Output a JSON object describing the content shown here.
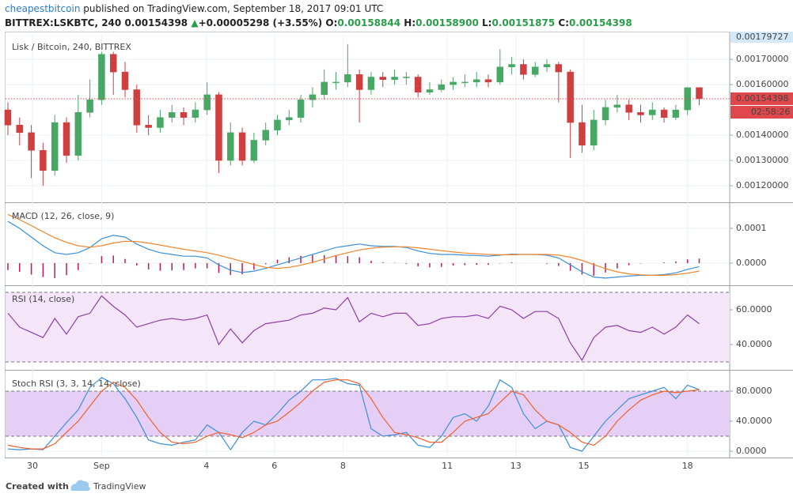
{
  "header": {
    "author": "cheapestbitcoin",
    "published": "published on TradingView.com, September 18, 2017 09:01 UTC",
    "symbol": "BITTREX:LSKBTC, 240",
    "price": "0.00154398",
    "arrow": "▲",
    "change": "+0.00005298 (+3.55%)",
    "ohlc": [
      {
        "label": "O:",
        "value": "0.00158844"
      },
      {
        "label": "H:",
        "value": "0.00158900"
      },
      {
        "label": "L:",
        "value": "0.00151875"
      },
      {
        "label": "C:",
        "value": "0.00154398"
      }
    ]
  },
  "footer": {
    "created": "Created with",
    "brand": "TradingView"
  },
  "chart_data": [
    {
      "type": "candlestick",
      "title": "Lisk / Bitcoin, 240, BITTREX",
      "up_color": "#47a865",
      "down_color": "#cf3f3f",
      "open": [
        0.0015,
        0.00144,
        0.00141,
        0.00134,
        0.00126,
        0.00145,
        0.00132,
        0.00149,
        0.00154,
        0.00172,
        0.00165,
        0.00158,
        0.00144,
        0.00143,
        0.00147,
        0.00149,
        0.00147,
        0.0015,
        0.00156,
        0.0013,
        0.00141,
        0.0013,
        0.00138,
        0.00142,
        0.00146,
        0.00147,
        0.00154,
        0.00156,
        0.00161,
        0.00161,
        0.00164,
        0.00158,
        0.00163,
        0.00162,
        0.00163,
        0.00163,
        0.00157,
        0.00158,
        0.0016,
        0.00161,
        0.00161,
        0.00162,
        0.00161,
        0.00167,
        0.00168,
        0.00164,
        0.00167,
        0.00168,
        0.00165,
        0.00145,
        0.00136,
        0.00146,
        0.00151,
        0.00152,
        0.00149,
        0.00148,
        0.0015,
        0.00147,
        0.0015,
        0.00158844
      ],
      "high": [
        0.00153,
        0.00147,
        0.00144,
        0.00137,
        0.00148,
        0.00147,
        0.00156,
        0.00162,
        0.00173,
        0.00173,
        0.00169,
        0.0016,
        0.00148,
        0.0015,
        0.00152,
        0.00151,
        0.00153,
        0.00161,
        0.00157,
        0.00145,
        0.00143,
        0.00141,
        0.00145,
        0.00148,
        0.0015,
        0.00156,
        0.00159,
        0.00166,
        0.00165,
        0.00176,
        0.00166,
        0.00165,
        0.00165,
        0.00166,
        0.00165,
        0.00164,
        0.00161,
        0.00162,
        0.00163,
        0.00164,
        0.00165,
        0.00164,
        0.00174,
        0.00171,
        0.0017,
        0.00169,
        0.0017,
        0.00169,
        0.00166,
        0.00152,
        0.0015,
        0.00154,
        0.00156,
        0.00154,
        0.00152,
        0.00153,
        0.00151,
        0.00152,
        0.00159,
        0.001589
      ],
      "low": [
        0.0014,
        0.00136,
        0.00123,
        0.0012,
        0.00124,
        0.00129,
        0.0013,
        0.00147,
        0.00152,
        0.00156,
        0.00155,
        0.00141,
        0.0014,
        0.00141,
        0.00145,
        0.00144,
        0.00145,
        0.00148,
        0.00125,
        0.00128,
        0.00128,
        0.00129,
        0.00136,
        0.0014,
        0.00144,
        0.00145,
        0.00151,
        0.00154,
        0.00158,
        0.00159,
        0.00145,
        0.00156,
        0.00159,
        0.0016,
        0.0016,
        0.00155,
        0.00156,
        0.00157,
        0.00158,
        0.00159,
        0.00159,
        0.00159,
        0.0016,
        0.00164,
        0.00162,
        0.00163,
        0.00165,
        0.00153,
        0.00131,
        0.00133,
        0.00134,
        0.00144,
        0.00149,
        0.00146,
        0.00145,
        0.00146,
        0.00145,
        0.00146,
        0.00148,
        0.00151875
      ],
      "close": [
        0.00144,
        0.00141,
        0.00134,
        0.00126,
        0.00145,
        0.00132,
        0.00149,
        0.00154,
        0.00172,
        0.00165,
        0.00158,
        0.00144,
        0.00143,
        0.00147,
        0.00149,
        0.00147,
        0.0015,
        0.00156,
        0.0013,
        0.00141,
        0.0013,
        0.00138,
        0.00142,
        0.00146,
        0.00147,
        0.00154,
        0.00156,
        0.00161,
        0.00161,
        0.00164,
        0.00158,
        0.00163,
        0.00162,
        0.00163,
        0.00163,
        0.00157,
        0.00158,
        0.0016,
        0.00161,
        0.00161,
        0.00162,
        0.00161,
        0.00167,
        0.00168,
        0.00164,
        0.00167,
        0.00168,
        0.00165,
        0.00145,
        0.00136,
        0.00146,
        0.00151,
        0.00152,
        0.00149,
        0.00148,
        0.0015,
        0.00147,
        0.0015,
        0.001588,
        0.00154398
      ],
      "ylim": [
        0.0011375,
        0.00179727
      ],
      "yticks": [
        {
          "value": 0.0012,
          "label": "0.00120000"
        },
        {
          "value": 0.0013,
          "label": "0.00130000"
        },
        {
          "value": 0.0014,
          "label": "0.00140000"
        },
        {
          "value": 0.0016,
          "label": "0.00160000"
        },
        {
          "value": 0.0017,
          "label": "0.00170000"
        }
      ],
      "scale_high": {
        "value": 0.00179727,
        "label": "0.00179727",
        "color": "#d3e8f8"
      },
      "last_price": {
        "value": 0.00154398,
        "label": "0.00154398",
        "countdown": "02:58:26",
        "color": "#e0474c"
      }
    },
    {
      "type": "line",
      "title": "MACD (12, 26, close, 9)",
      "series": [
        {
          "color": "#c2185b",
          "style": "histogram",
          "values": [
            -2e-05,
            -2.5e-05,
            -3.3e-05,
            -4e-05,
            -4.3e-05,
            -3.5e-05,
            -2e-05,
            -1e-06,
            2e-05,
            2.2e-05,
            1.2e-05,
            -7e-06,
            -1.8e-05,
            -2.2e-05,
            -2.1e-05,
            -2e-05,
            -1.5e-05,
            -1.5e-05,
            -2.8e-05,
            -3.4e-05,
            -3.2e-05,
            -1.9e-05,
            -3e-06,
            1e-05,
            1.7e-05,
            2.1e-05,
            2.3e-05,
            2.3e-05,
            2.3e-05,
            2e-05,
            1.7e-05,
            7e-06,
            2e-06,
            1e-06,
            -2e-06,
            -9e-06,
            -1.2e-05,
            -1.1e-05,
            -7e-06,
            -6e-06,
            -5e-06,
            -5e-06,
            -1e-06,
            2e-06,
            0,
            0,
            -2e-06,
            -8e-06,
            -2.2e-05,
            -3.3e-05,
            -3.6e-05,
            -2.7e-05,
            -1.5e-05,
            -6e-06,
            -1e-06,
            0,
            2e-06,
            5e-06,
            1.1e-05,
            1.3e-05
          ]
        },
        {
          "color": "#3c8fd8",
          "values": [
            0.00012,
            0.0001,
            7.5e-05,
            5e-05,
            3e-05,
            2.5e-05,
            3e-05,
            4.5e-05,
            7e-05,
            8e-05,
            7.5e-05,
            5.5e-05,
            4e-05,
            3e-05,
            2.5e-05,
            2e-05,
            2e-05,
            1.5e-05,
            -5e-06,
            -2e-05,
            -2.7e-05,
            -2.3e-05,
            -1.5e-05,
            -5e-06,
            5e-06,
            1.5e-05,
            2.5e-05,
            3.5e-05,
            4.5e-05,
            5e-05,
            5.5e-05,
            5e-05,
            4.8e-05,
            4.8e-05,
            4.5e-05,
            3.5e-05,
            2.8e-05,
            2.5e-05,
            2.5e-05,
            2.3e-05,
            2.2e-05,
            2e-05,
            2.3e-05,
            2.6e-05,
            2.5e-05,
            2.5e-05,
            2.3e-05,
            1.5e-05,
            -5e-06,
            -2.5e-05,
            -4e-05,
            -4.3e-05,
            -4e-05,
            -3.7e-05,
            -3.5e-05,
            -3.5e-05,
            -3.3e-05,
            -2.8e-05,
            -1.8e-05,
            -1e-05
          ]
        },
        {
          "color": "#f2852c",
          "values": [
            0.00014,
            0.000125,
            0.000108,
            9e-05,
            7.3e-05,
            6e-05,
            5e-05,
            4.6e-05,
            5e-05,
            5.8e-05,
            6.3e-05,
            6.2e-05,
            5.8e-05,
            5.2e-05,
            4.6e-05,
            4e-05,
            3.5e-05,
            3e-05,
            2.3e-05,
            1.4e-05,
            5e-06,
            -4e-06,
            -1.2e-05,
            -1.5e-05,
            -1.2e-05,
            -6e-06,
            2e-06,
            1.2e-05,
            2.2e-05,
            3e-05,
            3.8e-05,
            4.3e-05,
            4.6e-05,
            4.7e-05,
            4.7e-05,
            4.4e-05,
            4e-05,
            3.6e-05,
            3.2e-05,
            2.9e-05,
            2.7e-05,
            2.5e-05,
            2.4e-05,
            2.4e-05,
            2.5e-05,
            2.5e-05,
            2.5e-05,
            2.3e-05,
            1.7e-05,
            8e-06,
            -4e-06,
            -1.6e-05,
            -2.5e-05,
            -3.1e-05,
            -3.4e-05,
            -3.5e-05,
            -3.5e-05,
            -3.3e-05,
            -2.9e-05,
            -2.3e-05
          ]
        }
      ],
      "ylim": [
        -6.14e-05,
        0.0001705
      ],
      "yticks": [
        {
          "value": 0,
          "label": "0.0000"
        },
        0.0001
      ]
    },
    {
      "type": "line",
      "title": "RSI (14, close)",
      "bands": [
        30,
        70
      ],
      "band_color": "#f4e6f8",
      "series": [
        {
          "color": "#8e3fa8",
          "values": [
            58,
            50,
            47,
            44,
            55,
            46,
            56,
            58,
            68,
            62,
            57,
            50,
            52,
            54,
            55,
            54,
            55,
            57,
            40,
            49,
            41,
            48,
            52,
            53,
            54,
            57,
            58,
            61,
            60,
            67,
            53,
            58,
            56,
            58,
            58,
            51,
            52,
            55,
            56,
            56,
            57,
            55,
            62,
            60,
            55,
            59,
            59,
            55,
            41,
            31,
            44,
            50,
            51,
            48,
            47,
            50,
            46,
            50,
            57,
            52
          ]
        }
      ],
      "ylim": [
        25.9,
        73.2
      ],
      "yticks": [
        {
          "value": 40,
          "label": "40.0000"
        },
        {
          "value": 60,
          "label": "60.0000"
        }
      ]
    },
    {
      "type": "line",
      "title": "Stoch RSI (3, 3, 14, 14, close)",
      "bands": [
        20,
        80
      ],
      "band_color": "#e6cff7",
      "series": [
        {
          "color": "#3c8fd8",
          "values": [
            3,
            2,
            3,
            2,
            20,
            38,
            55,
            85,
            98,
            90,
            70,
            45,
            15,
            10,
            8,
            12,
            15,
            35,
            25,
            2,
            25,
            40,
            35,
            50,
            68,
            80,
            95,
            95,
            97,
            90,
            88,
            30,
            20,
            22,
            25,
            8,
            5,
            20,
            45,
            50,
            40,
            60,
            95,
            85,
            50,
            30,
            40,
            35,
            5,
            0,
            20,
            40,
            55,
            70,
            75,
            80,
            85,
            70,
            88,
            82
          ]
        },
        {
          "color": "#f2602c",
          "values": [
            8,
            5,
            3,
            3,
            10,
            25,
            40,
            60,
            80,
            92,
            85,
            68,
            45,
            25,
            12,
            10,
            12,
            20,
            25,
            22,
            18,
            25,
            35,
            40,
            52,
            65,
            80,
            92,
            95,
            95,
            90,
            70,
            45,
            25,
            22,
            18,
            12,
            12,
            25,
            40,
            45,
            50,
            65,
            80,
            75,
            55,
            40,
            35,
            25,
            12,
            8,
            20,
            40,
            55,
            68,
            75,
            80,
            78,
            80,
            82
          ]
        }
      ],
      "ylim": [
        -7.4,
        106.3
      ],
      "yticks": [
        {
          "value": 0,
          "label": "0.0000"
        },
        {
          "value": 40,
          "label": "40.0000"
        },
        {
          "value": 80,
          "label": "80.0000"
        }
      ],
      "xlim": [
        -0.2,
        61.6
      ],
      "xticks": [
        {
          "value": 2.1,
          "label": "30"
        },
        {
          "value": 8.0,
          "label": "Sep"
        },
        {
          "value": 16.95,
          "label": "4"
        },
        {
          "value": 22.75,
          "label": "6"
        },
        {
          "value": 28.6,
          "label": "8"
        },
        {
          "value": 37.5,
          "label": "11"
        },
        {
          "value": 43.35,
          "label": "13"
        },
        {
          "value": 49.15,
          "label": "15"
        },
        {
          "value": 58.0,
          "label": "18"
        }
      ]
    }
  ]
}
